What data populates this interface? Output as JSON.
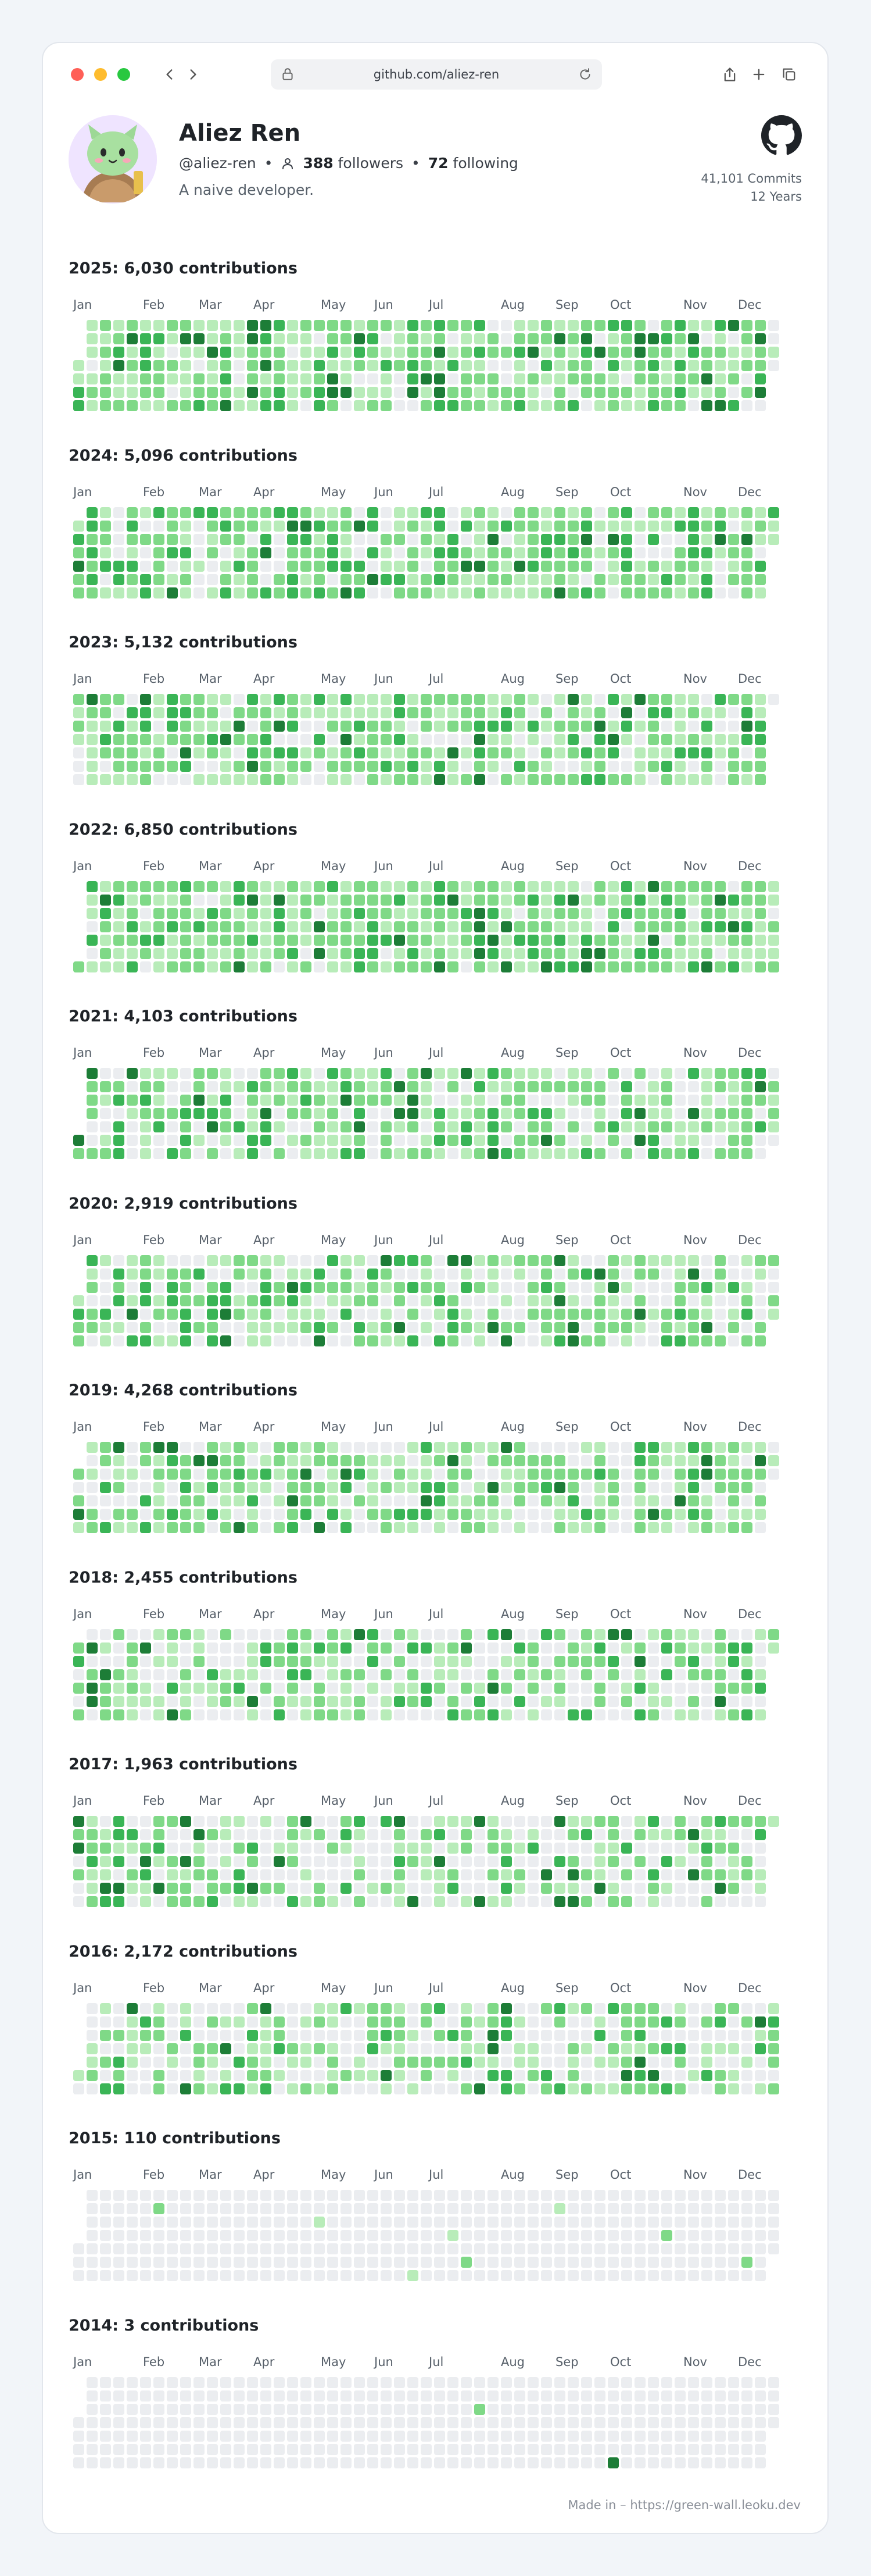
{
  "browser": {
    "url": "github.com/aliez-ren",
    "icons": [
      "back-icon",
      "forward-icon",
      "lock-icon",
      "reload-icon",
      "share-icon",
      "new-tab-icon",
      "tabs-icon"
    ]
  },
  "profile": {
    "name": "Aliez Ren",
    "handle": "@aliez-ren",
    "followers_count": "388",
    "followers_label": "followers",
    "following_count": "72",
    "following_label": "following",
    "separator": "•",
    "bio": "A naive developer.",
    "commits": "41,101 Commits",
    "years": "12 Years"
  },
  "colors": {
    "level0": "#ebedf0",
    "level1": "#b8ecb9",
    "level2": "#7fd987",
    "level3": "#3ab556",
    "level4": "#1d7d37"
  },
  "months": [
    "Jan",
    "Feb",
    "Mar",
    "Apr",
    "May",
    "Jun",
    "Jul",
    "Aug",
    "Sep",
    "Oct",
    "Nov",
    "Dec"
  ],
  "years": [
    {
      "title": "2025:  6,030 contributions",
      "contributions": 6030,
      "year": 2025
    },
    {
      "title": "2024:  5,096 contributions",
      "contributions": 5096,
      "year": 2024
    },
    {
      "title": "2023:  5,132 contributions",
      "contributions": 5132,
      "year": 2023
    },
    {
      "title": "2022:  6,850 contributions",
      "contributions": 6850,
      "year": 2022
    },
    {
      "title": "2021:  4,103 contributions",
      "contributions": 4103,
      "year": 2021
    },
    {
      "title": "2020:  2,919 contributions",
      "contributions": 2919,
      "year": 2020
    },
    {
      "title": "2019:  4,268 contributions",
      "contributions": 4268,
      "year": 2019
    },
    {
      "title": "2018:  2,455 contributions",
      "contributions": 2455,
      "year": 2018
    },
    {
      "title": "2017:  1,963 contributions",
      "contributions": 1963,
      "year": 2017
    },
    {
      "title": "2016:  2,172 contributions",
      "contributions": 2172,
      "year": 2016
    },
    {
      "title": "2015:  110 contributions",
      "contributions": 110,
      "year": 2015
    },
    {
      "title": "2014:  3 contributions",
      "contributions": 3,
      "year": 2014
    }
  ],
  "footer": "Made in – https://green-wall.leoku.dev"
}
